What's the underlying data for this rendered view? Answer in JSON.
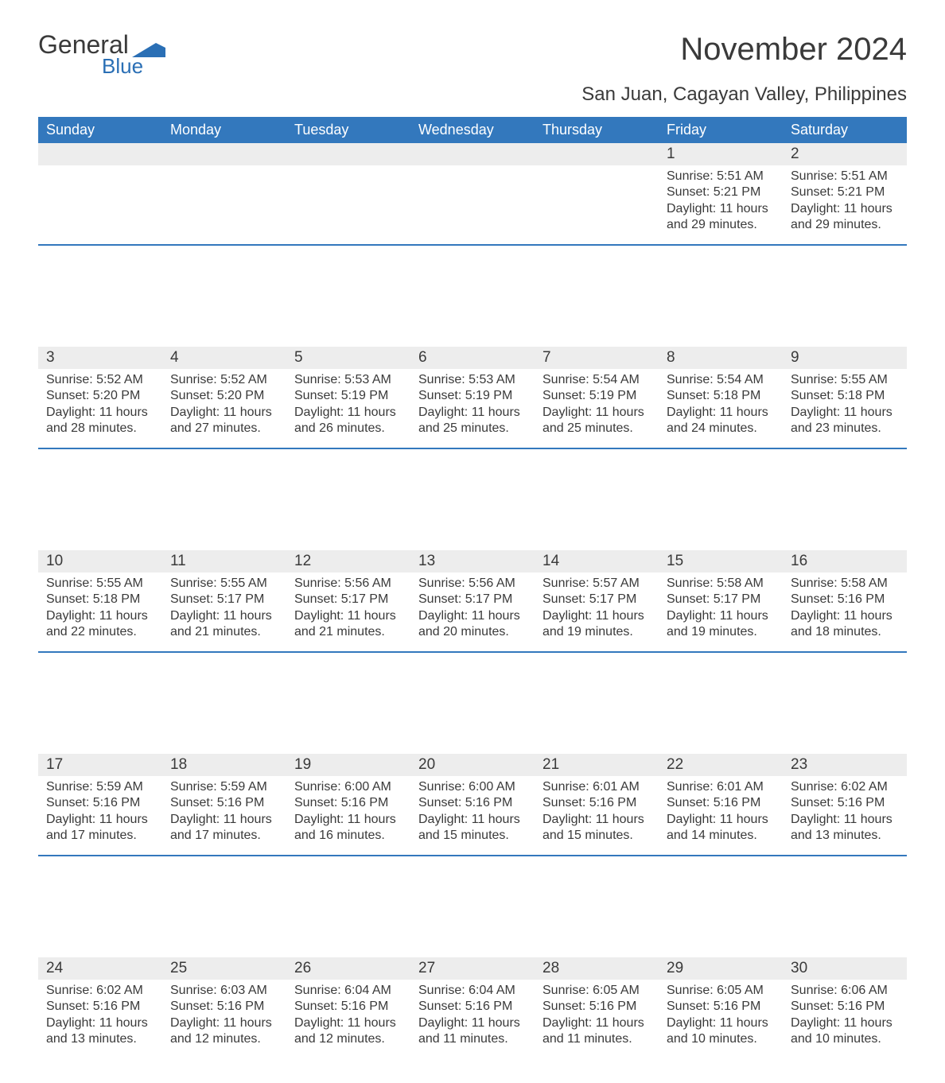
{
  "brand": {
    "name": "General",
    "sub": "Blue",
    "color": "#2a6fb5"
  },
  "title": "November 2024",
  "subtitle": "San Juan, Cagayan Valley, Philippines",
  "colors": {
    "header_bg": "#3378bd",
    "header_text": "#ffffff",
    "daynum_bg": "#ededed",
    "text": "#3a3a3a",
    "row_border": "#3378bd",
    "page_bg": "#ffffff"
  },
  "weekdays": [
    "Sunday",
    "Monday",
    "Tuesday",
    "Wednesday",
    "Thursday",
    "Friday",
    "Saturday"
  ],
  "weeks": [
    [
      null,
      null,
      null,
      null,
      null,
      {
        "day": "1",
        "sunrise": "5:51 AM",
        "sunset": "5:21 PM",
        "daylight": "11 hours and 29 minutes."
      },
      {
        "day": "2",
        "sunrise": "5:51 AM",
        "sunset": "5:21 PM",
        "daylight": "11 hours and 29 minutes."
      }
    ],
    [
      {
        "day": "3",
        "sunrise": "5:52 AM",
        "sunset": "5:20 PM",
        "daylight": "11 hours and 28 minutes."
      },
      {
        "day": "4",
        "sunrise": "5:52 AM",
        "sunset": "5:20 PM",
        "daylight": "11 hours and 27 minutes."
      },
      {
        "day": "5",
        "sunrise": "5:53 AM",
        "sunset": "5:19 PM",
        "daylight": "11 hours and 26 minutes."
      },
      {
        "day": "6",
        "sunrise": "5:53 AM",
        "sunset": "5:19 PM",
        "daylight": "11 hours and 25 minutes."
      },
      {
        "day": "7",
        "sunrise": "5:54 AM",
        "sunset": "5:19 PM",
        "daylight": "11 hours and 25 minutes."
      },
      {
        "day": "8",
        "sunrise": "5:54 AM",
        "sunset": "5:18 PM",
        "daylight": "11 hours and 24 minutes."
      },
      {
        "day": "9",
        "sunrise": "5:55 AM",
        "sunset": "5:18 PM",
        "daylight": "11 hours and 23 minutes."
      }
    ],
    [
      {
        "day": "10",
        "sunrise": "5:55 AM",
        "sunset": "5:18 PM",
        "daylight": "11 hours and 22 minutes."
      },
      {
        "day": "11",
        "sunrise": "5:55 AM",
        "sunset": "5:17 PM",
        "daylight": "11 hours and 21 minutes."
      },
      {
        "day": "12",
        "sunrise": "5:56 AM",
        "sunset": "5:17 PM",
        "daylight": "11 hours and 21 minutes."
      },
      {
        "day": "13",
        "sunrise": "5:56 AM",
        "sunset": "5:17 PM",
        "daylight": "11 hours and 20 minutes."
      },
      {
        "day": "14",
        "sunrise": "5:57 AM",
        "sunset": "5:17 PM",
        "daylight": "11 hours and 19 minutes."
      },
      {
        "day": "15",
        "sunrise": "5:58 AM",
        "sunset": "5:17 PM",
        "daylight": "11 hours and 19 minutes."
      },
      {
        "day": "16",
        "sunrise": "5:58 AM",
        "sunset": "5:16 PM",
        "daylight": "11 hours and 18 minutes."
      }
    ],
    [
      {
        "day": "17",
        "sunrise": "5:59 AM",
        "sunset": "5:16 PM",
        "daylight": "11 hours and 17 minutes."
      },
      {
        "day": "18",
        "sunrise": "5:59 AM",
        "sunset": "5:16 PM",
        "daylight": "11 hours and 17 minutes."
      },
      {
        "day": "19",
        "sunrise": "6:00 AM",
        "sunset": "5:16 PM",
        "daylight": "11 hours and 16 minutes."
      },
      {
        "day": "20",
        "sunrise": "6:00 AM",
        "sunset": "5:16 PM",
        "daylight": "11 hours and 15 minutes."
      },
      {
        "day": "21",
        "sunrise": "6:01 AM",
        "sunset": "5:16 PM",
        "daylight": "11 hours and 15 minutes."
      },
      {
        "day": "22",
        "sunrise": "6:01 AM",
        "sunset": "5:16 PM",
        "daylight": "11 hours and 14 minutes."
      },
      {
        "day": "23",
        "sunrise": "6:02 AM",
        "sunset": "5:16 PM",
        "daylight": "11 hours and 13 minutes."
      }
    ],
    [
      {
        "day": "24",
        "sunrise": "6:02 AM",
        "sunset": "5:16 PM",
        "daylight": "11 hours and 13 minutes."
      },
      {
        "day": "25",
        "sunrise": "6:03 AM",
        "sunset": "5:16 PM",
        "daylight": "11 hours and 12 minutes."
      },
      {
        "day": "26",
        "sunrise": "6:04 AM",
        "sunset": "5:16 PM",
        "daylight": "11 hours and 12 minutes."
      },
      {
        "day": "27",
        "sunrise": "6:04 AM",
        "sunset": "5:16 PM",
        "daylight": "11 hours and 11 minutes."
      },
      {
        "day": "28",
        "sunrise": "6:05 AM",
        "sunset": "5:16 PM",
        "daylight": "11 hours and 11 minutes."
      },
      {
        "day": "29",
        "sunrise": "6:05 AM",
        "sunset": "5:16 PM",
        "daylight": "11 hours and 10 minutes."
      },
      {
        "day": "30",
        "sunrise": "6:06 AM",
        "sunset": "5:16 PM",
        "daylight": "11 hours and 10 minutes."
      }
    ]
  ],
  "labels": {
    "sunrise": "Sunrise: ",
    "sunset": "Sunset: ",
    "daylight": "Daylight: "
  }
}
